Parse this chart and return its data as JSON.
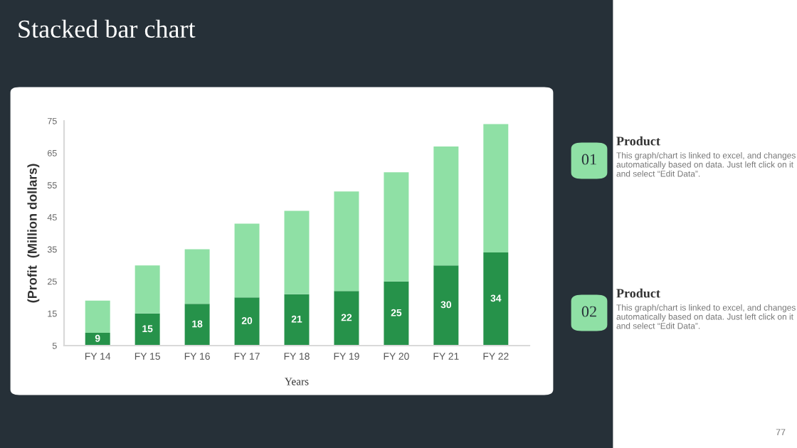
{
  "chart_data": {
    "type": "bar",
    "stacked": true,
    "title": "Stacked bar chart",
    "xlabel": "Years",
    "ylabel": "(Profit  (Million dollars)",
    "categories": [
      "FY 14",
      "FY 15",
      "FY 16",
      "FY 17",
      "FY 18",
      "FY 19",
      "FY 20",
      "FY 21",
      "FY 22"
    ],
    "series": [
      {
        "color": "#26924a",
        "values": [
          9,
          15,
          18,
          20,
          21,
          22,
          25,
          30,
          34
        ],
        "value_labels": [
          "9",
          "15",
          "18",
          "20",
          "21",
          "22",
          "25",
          "30",
          "34"
        ]
      },
      {
        "color": "#8fe0a5",
        "values": [
          10,
          15,
          17,
          23,
          26,
          31,
          34,
          37,
          40
        ]
      }
    ],
    "ylim": [
      5,
      75
    ],
    "yticks": [
      5,
      15,
      25,
      35,
      45,
      55,
      65,
      75
    ],
    "grid": false,
    "legend": false,
    "annotations": [
      "01",
      "Product",
      "This graph/chart is linked to excel, and changes automatically based on data. Just left click on it and select “Edit Data”.",
      "02",
      "Product",
      "This graph/chart is linked to excel, and changes automatically based on data. Just left click on it and select “Edit Data”.",
      "77"
    ]
  }
}
